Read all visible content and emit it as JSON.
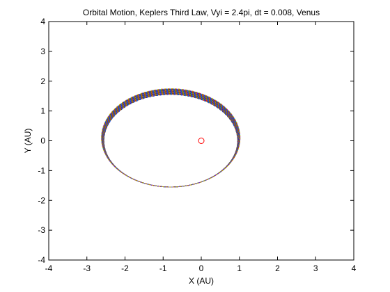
{
  "chart_data": {
    "type": "line",
    "title": "Orbital Motion, Keplers Third Law, Vyi = 2.4pi, dt = 0.008, Venus",
    "xlabel": "X (AU)",
    "ylabel": "Y (AU)",
    "xlim": [
      -4,
      4
    ],
    "ylim": [
      -4,
      4
    ],
    "x_ticks": [
      -4,
      -3,
      -2,
      -1,
      0,
      1,
      2,
      3,
      4
    ],
    "y_ticks": [
      -4,
      -3,
      -2,
      -1,
      0,
      1,
      2,
      3,
      4
    ],
    "grid": false,
    "legend": "none",
    "sun": {
      "x": 0,
      "y": 0,
      "marker": "circle",
      "color": "#ff0000"
    },
    "orbit": {
      "description_type": "precessing ellipse band",
      "inner_ellipse": {
        "center_x": -0.8,
        "center_y": 0.0,
        "semi_x": 1.75,
        "semi_y": 1.55
      },
      "outer_ellipse": {
        "center_x": -0.8,
        "center_y": 0.1,
        "semi_x": 1.82,
        "semi_y": 1.65
      },
      "right_extreme_x": 1.0,
      "left_extreme_x": -2.62,
      "top_extreme_y": 1.75,
      "bottom_extreme_y": -1.65,
      "colors": [
        "#0000ff",
        "#008000",
        "#ff0000",
        "#00bfbf",
        "#bf00bf",
        "#bfbf00",
        "#404040"
      ]
    }
  }
}
